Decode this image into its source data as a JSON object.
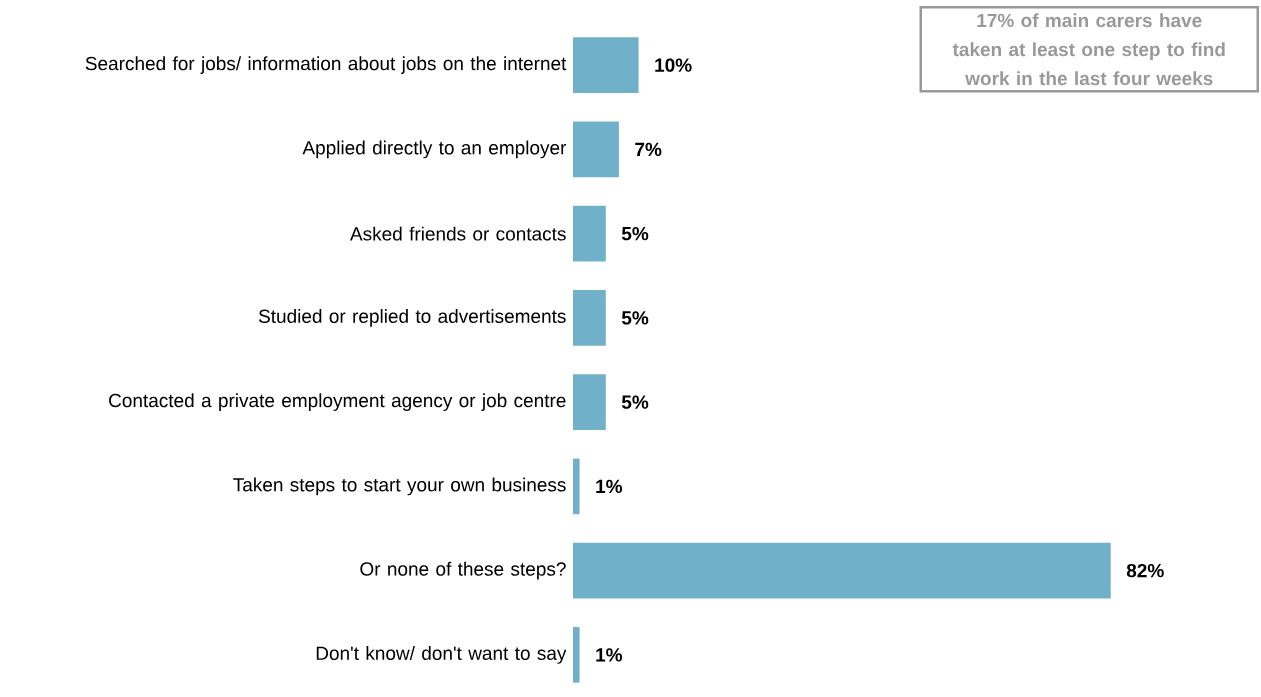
{
  "chart_data": {
    "type": "bar",
    "orientation": "horizontal",
    "categories": [
      "Searched for jobs/ information about jobs on the internet",
      "Applied directly to an employer",
      "Asked friends or contacts",
      "Studied or replied to advertisements",
      "Contacted a private employment agency or job centre",
      "Taken steps to start your own business",
      "Or none of these steps?",
      "Don't know/ don't want to say"
    ],
    "values": [
      10,
      7,
      5,
      5,
      5,
      1,
      82,
      1
    ],
    "value_labels": [
      "10%",
      "7%",
      "5%",
      "5%",
      "5%",
      "1%",
      "82%",
      "1%"
    ],
    "color": "#70b1c9",
    "annotations": [
      "17% of main carers have taken at least one step to find work in the last four weeks"
    ]
  }
}
